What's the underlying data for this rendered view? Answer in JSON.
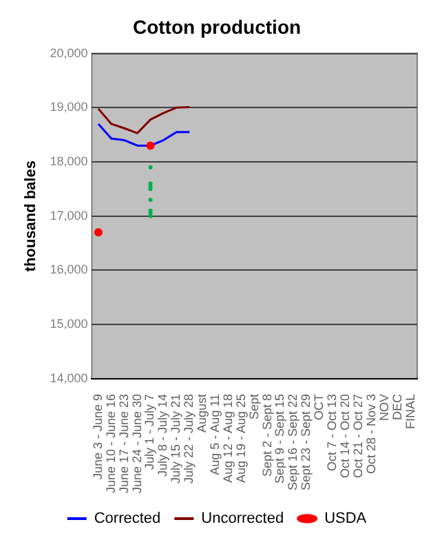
{
  "chart_data": {
    "type": "line",
    "title": "Cotton production",
    "ylabel": "thousand bales",
    "categories": [
      "June 3 - June 9",
      "June 10 - June 16",
      "June 17 - June 23",
      "June 24 - June 30",
      "July 1 - July 7",
      "July 8 - July 14",
      "July 15 - July 21",
      "July 22 - July 28",
      "August",
      "Aug 5 - Aug 11",
      "Aug 12 - Aug 18",
      "Aug 19 - Aug 25",
      "Sept",
      "Sept 2 - Sept 8",
      "Sept 9 - Sept 15",
      "Sept 16 - Sept 22",
      "Sept 23 - Sept 29",
      "OCT",
      "Oct 7 - Oct 13",
      "Oct 14 - Oct 20",
      "Oct 21 - Oct 27",
      "Oct 28 - Nov 3",
      "NOV",
      "DEC",
      "FINAL"
    ],
    "series": [
      {
        "name": "Corrected",
        "color": "#0000ff",
        "values": [
          18700,
          18430,
          18400,
          18300,
          18300,
          18400,
          18550,
          18550,
          null,
          null,
          null,
          null,
          null,
          null,
          null,
          null,
          null,
          null,
          null,
          null,
          null,
          null,
          null,
          null,
          null
        ]
      },
      {
        "name": "Uncorrected",
        "color": "#800000",
        "values": [
          18980,
          18700,
          18620,
          18530,
          18780,
          18900,
          19000,
          19010,
          null,
          null,
          null,
          null,
          null,
          null,
          null,
          null,
          null,
          null,
          null,
          null,
          null,
          null,
          null,
          null,
          null
        ]
      },
      {
        "name": "USDA",
        "type": "scatter",
        "color": "#ff0000",
        "x": [
          "June 3 - June 9",
          "July 1 - July 7"
        ],
        "values": [
          16700,
          18300
        ]
      },
      {
        "type": "scatter",
        "color": "#00b050",
        "x": [
          "July 1 - July 7",
          "July 1 - July 7",
          "July 1 - July 7",
          "July 1 - July 7",
          "July 1 - July 7",
          "July 1 - July 7",
          "July 1 - July 7",
          "July 1 - July 7"
        ],
        "values": [
          17900,
          17600,
          17550,
          17500,
          17300,
          17100,
          17050,
          17000
        ]
      }
    ],
    "ylim": [
      14000,
      20000
    ],
    "yticks": [
      {
        "value": 14000,
        "label": "14,000"
      },
      {
        "value": 15000,
        "label": "15,000"
      },
      {
        "value": 16000,
        "label": "16,000"
      },
      {
        "value": 17000,
        "label": "17,000"
      },
      {
        "value": 18000,
        "label": "18,000"
      },
      {
        "value": 19000,
        "label": "19,000"
      },
      {
        "value": 20000,
        "label": "20,000"
      }
    ],
    "grid": "y",
    "legend": "bottom",
    "line_style": "solid"
  }
}
